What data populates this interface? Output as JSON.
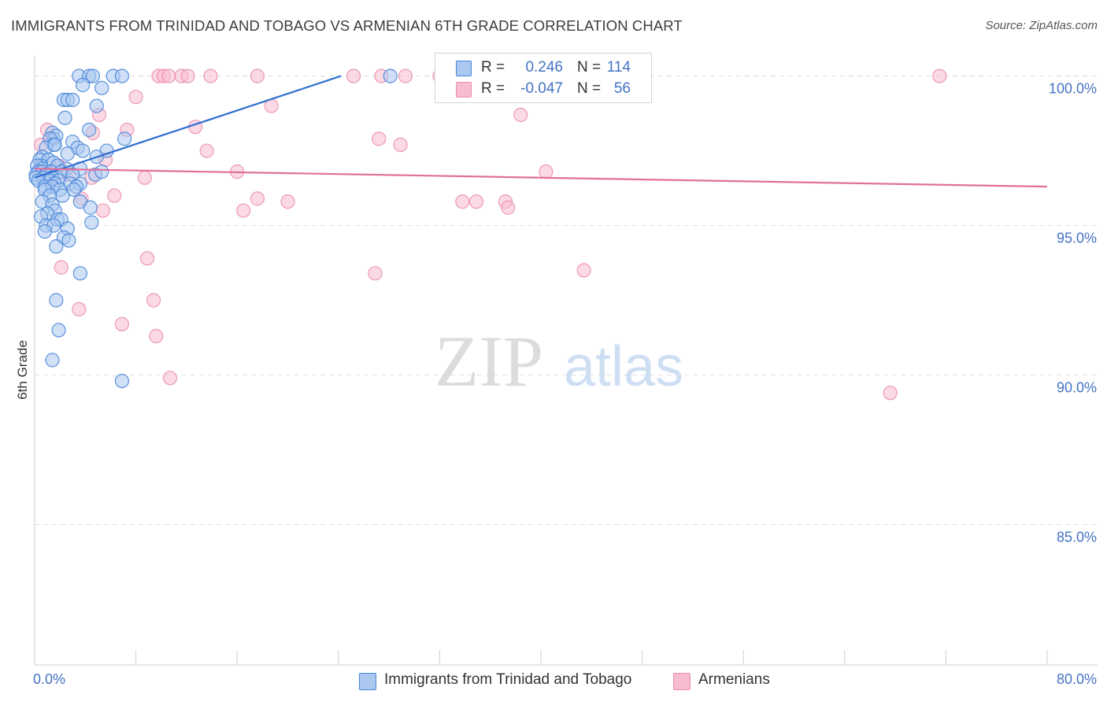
{
  "title": "IMMIGRANTS FROM TRINIDAD AND TOBAGO VS ARMENIAN 6TH GRADE CORRELATION CHART",
  "source": "Source: ZipAtlas.com",
  "watermark": {
    "zip": "ZIP",
    "atlas": "atlas"
  },
  "colors": {
    "blue_fill": "#aac8f0",
    "blue_stroke": "#4a86d8",
    "blue_line": "#2f6fd0",
    "pink_fill": "#f7bcd0",
    "pink_stroke": "#ea8fae",
    "pink_line": "#e0709a",
    "grid": "#e2e2e2",
    "axis_text": "#4472c4"
  },
  "legend": {
    "rows": [
      {
        "r_label": "R =",
        "r_value": "0.246",
        "n_label": "N =",
        "n_value": "114",
        "color": "#aac8f0",
        "border": "#4a86d8"
      },
      {
        "r_label": "R =",
        "r_value": "-0.047",
        "n_label": "N =",
        "n_value": "56",
        "color": "#f7bcd0",
        "border": "#ea8fae"
      }
    ]
  },
  "bottom_legend": [
    {
      "label": "Immigrants from Trinidad and Tobago",
      "color": "#aac8f0",
      "border": "#4a86d8"
    },
    {
      "label": "Armenians",
      "color": "#f7bcd0",
      "border": "#ea8fae"
    }
  ],
  "chart_data": {
    "type": "scatter",
    "title": "IMMIGRANTS FROM TRINIDAD AND TOBAGO VS ARMENIAN 6TH GRADE CORRELATION CHART",
    "xlabel": "",
    "ylabel": "6th Grade",
    "xlim": [
      0,
      80
    ],
    "ylim": [
      80.3,
      100.7
    ],
    "x_tick_labels": [
      "0.0%",
      "80.0%"
    ],
    "y_ticks": [
      {
        "value": 100,
        "label": "100.0%"
      },
      {
        "value": 95,
        "label": "95.0%"
      },
      {
        "value": 90,
        "label": "90.0%"
      },
      {
        "value": 85,
        "label": "85.0%"
      }
    ],
    "series": [
      {
        "name": "Immigrants from Trinidad and Tobago",
        "trend": {
          "x": [
            0.0,
            24.2
          ],
          "y": [
            96.6,
            100.0
          ]
        },
        "points": [
          [
            3.5,
            100
          ],
          [
            4.3,
            100
          ],
          [
            4.6,
            100
          ],
          [
            6.2,
            100
          ],
          [
            6.9,
            100
          ],
          [
            28.1,
            100
          ],
          [
            3.8,
            99.7
          ],
          [
            5.3,
            99.6
          ],
          [
            2.3,
            99.2
          ],
          [
            2.6,
            99.2
          ],
          [
            3.0,
            99.2
          ],
          [
            4.9,
            99.0
          ],
          [
            2.4,
            98.6
          ],
          [
            4.3,
            98.2
          ],
          [
            1.4,
            98.1
          ],
          [
            1.5,
            97.9
          ],
          [
            1.7,
            98.0
          ],
          [
            1.2,
            97.9
          ],
          [
            1.5,
            97.7
          ],
          [
            3.0,
            97.8
          ],
          [
            7.1,
            97.9
          ],
          [
            0.9,
            97.6
          ],
          [
            1.6,
            97.7
          ],
          [
            3.4,
            97.6
          ],
          [
            3.8,
            97.5
          ],
          [
            2.6,
            97.4
          ],
          [
            5.7,
            97.5
          ],
          [
            4.9,
            97.3
          ],
          [
            0.6,
            97.3
          ],
          [
            0.4,
            97.2
          ],
          [
            1.1,
            97.2
          ],
          [
            1.5,
            97.1
          ],
          [
            0.5,
            97.0
          ],
          [
            0.2,
            97.0
          ],
          [
            0.6,
            96.9
          ],
          [
            1.8,
            97.0
          ],
          [
            2.5,
            96.9
          ],
          [
            3.6,
            96.9
          ],
          [
            0.3,
            96.8
          ],
          [
            0.6,
            96.8
          ],
          [
            1.3,
            96.8
          ],
          [
            2.1,
            96.8
          ],
          [
            0.1,
            96.7
          ],
          [
            0.9,
            96.7
          ],
          [
            1.4,
            96.6
          ],
          [
            3.0,
            96.7
          ],
          [
            4.8,
            96.7
          ],
          [
            5.3,
            96.8
          ],
          [
            0.1,
            96.6
          ],
          [
            0.7,
            96.6
          ],
          [
            1.2,
            96.5
          ],
          [
            1.9,
            96.5
          ],
          [
            0.3,
            96.5
          ],
          [
            1.6,
            96.4
          ],
          [
            2.8,
            96.4
          ],
          [
            3.6,
            96.4
          ],
          [
            3.3,
            96.3
          ],
          [
            0.8,
            96.3
          ],
          [
            1.4,
            96.3
          ],
          [
            2.0,
            96.2
          ],
          [
            0.8,
            96.2
          ],
          [
            3.1,
            96.2
          ],
          [
            1.2,
            96.0
          ],
          [
            2.2,
            96.0
          ],
          [
            0.6,
            95.8
          ],
          [
            1.4,
            95.7
          ],
          [
            3.6,
            95.8
          ],
          [
            4.4,
            95.6
          ],
          [
            1.6,
            95.5
          ],
          [
            1.0,
            95.4
          ],
          [
            0.5,
            95.3
          ],
          [
            1.8,
            95.2
          ],
          [
            2.1,
            95.2
          ],
          [
            4.5,
            95.1
          ],
          [
            0.9,
            95.0
          ],
          [
            1.5,
            95.0
          ],
          [
            2.6,
            94.9
          ],
          [
            0.8,
            94.8
          ],
          [
            2.3,
            94.6
          ],
          [
            2.7,
            94.5
          ],
          [
            1.7,
            94.3
          ],
          [
            3.6,
            93.4
          ],
          [
            1.7,
            92.5
          ],
          [
            1.9,
            91.5
          ],
          [
            1.4,
            90.5
          ],
          [
            6.9,
            89.8
          ]
        ]
      },
      {
        "name": "Armenians",
        "trend": {
          "x": [
            0.0,
            80.0
          ],
          "y": [
            96.9,
            96.3
          ]
        },
        "points": [
          [
            9.8,
            100
          ],
          [
            10.2,
            100
          ],
          [
            10.6,
            100
          ],
          [
            11.6,
            100
          ],
          [
            12.1,
            100
          ],
          [
            13.9,
            100
          ],
          [
            17.6,
            100
          ],
          [
            25.2,
            100
          ],
          [
            27.4,
            100
          ],
          [
            29.3,
            100
          ],
          [
            32.0,
            100
          ],
          [
            71.5,
            100
          ],
          [
            8.0,
            99.3
          ],
          [
            18.7,
            99.0
          ],
          [
            5.1,
            98.7
          ],
          [
            38.4,
            98.7
          ],
          [
            12.7,
            98.3
          ],
          [
            4.6,
            98.1
          ],
          [
            7.3,
            98.2
          ],
          [
            1.0,
            98.2
          ],
          [
            1.3,
            97.9
          ],
          [
            27.2,
            97.9
          ],
          [
            0.5,
            97.7
          ],
          [
            28.9,
            97.7
          ],
          [
            13.6,
            97.5
          ],
          [
            5.6,
            97.2
          ],
          [
            1.9,
            97.0
          ],
          [
            16.0,
            96.8
          ],
          [
            40.4,
            96.8
          ],
          [
            2.7,
            96.7
          ],
          [
            8.7,
            96.6
          ],
          [
            4.5,
            96.6
          ],
          [
            6.3,
            96.0
          ],
          [
            17.6,
            95.9
          ],
          [
            20.0,
            95.8
          ],
          [
            33.8,
            95.8
          ],
          [
            34.9,
            95.8
          ],
          [
            37.2,
            95.8
          ],
          [
            37.4,
            95.6
          ],
          [
            16.5,
            95.5
          ],
          [
            5.4,
            95.5
          ],
          [
            3.7,
            95.9
          ],
          [
            8.9,
            93.9
          ],
          [
            2.1,
            93.6
          ],
          [
            26.9,
            93.4
          ],
          [
            43.4,
            93.5
          ],
          [
            9.4,
            92.5
          ],
          [
            3.5,
            92.2
          ],
          [
            6.9,
            91.7
          ],
          [
            9.6,
            91.3
          ],
          [
            10.7,
            89.9
          ],
          [
            67.6,
            89.4
          ]
        ]
      }
    ]
  }
}
